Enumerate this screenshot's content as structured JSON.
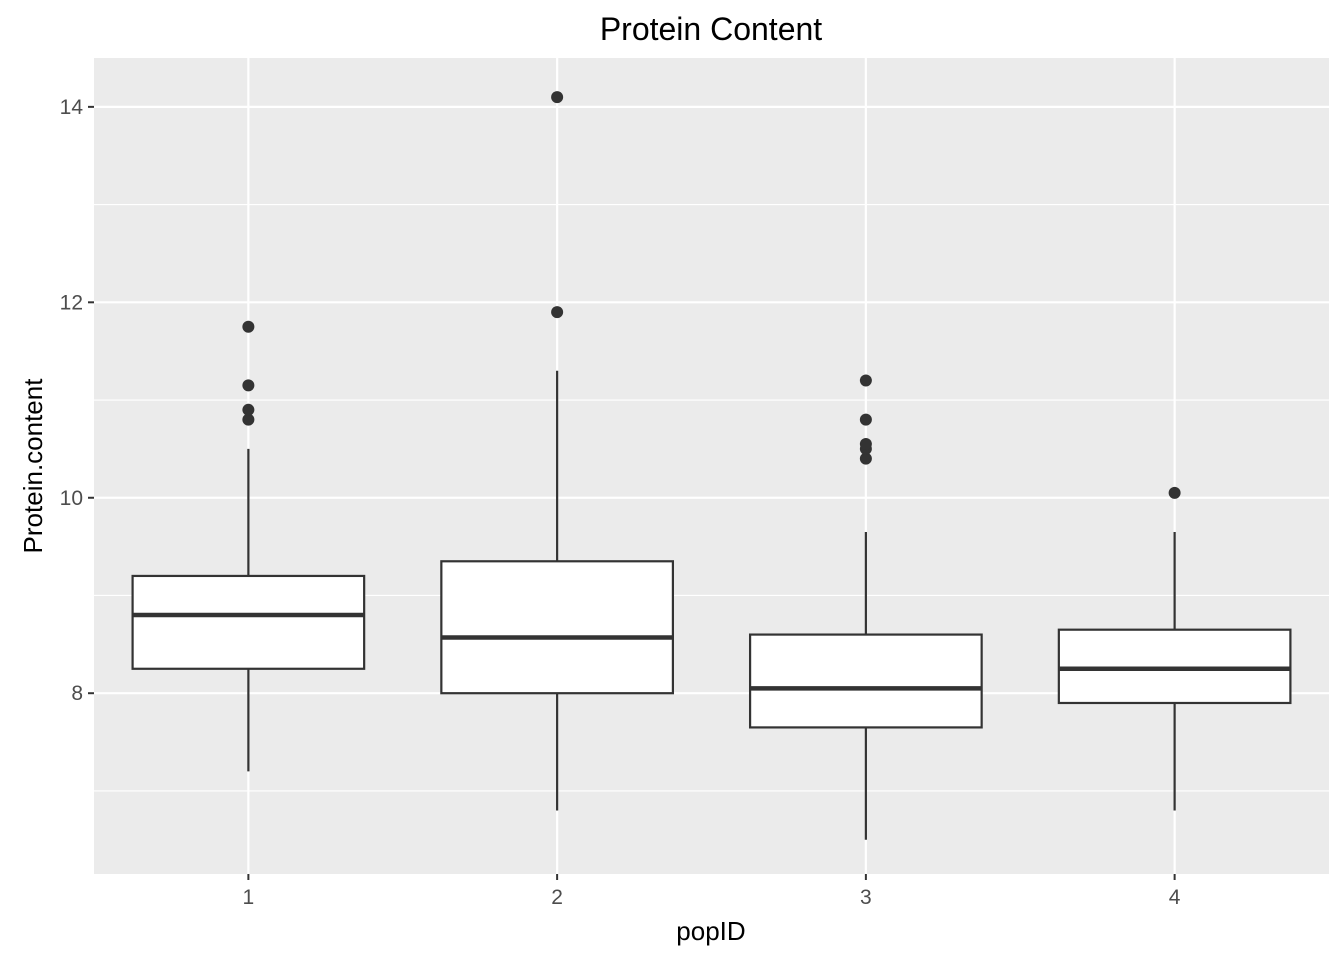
{
  "chart_data": {
    "type": "boxplot",
    "title": "Protein Content",
    "xlabel": "popID",
    "ylabel": "Protein.content",
    "categories": [
      "1",
      "2",
      "3",
      "4"
    ],
    "ylim": [
      6.15,
      14.5
    ],
    "y_ticks": [
      8,
      10,
      12,
      14
    ],
    "y_tick_labels": [
      "8",
      "10",
      "12",
      "14"
    ],
    "grid": true,
    "boxes": [
      {
        "category": "1",
        "whisker_low": 7.2,
        "q1": 8.25,
        "median": 8.8,
        "q3": 9.2,
        "whisker_high": 10.5,
        "outliers": [
          10.8,
          10.9,
          11.15,
          11.75
        ]
      },
      {
        "category": "2",
        "whisker_low": 6.8,
        "q1": 8.0,
        "median": 8.57,
        "q3": 9.35,
        "whisker_high": 11.3,
        "outliers": [
          11.9,
          14.1
        ]
      },
      {
        "category": "3",
        "whisker_low": 6.5,
        "q1": 7.65,
        "median": 8.05,
        "q3": 8.6,
        "whisker_high": 9.65,
        "outliers": [
          10.4,
          10.5,
          10.55,
          10.8,
          11.2
        ]
      },
      {
        "category": "4",
        "whisker_low": 6.8,
        "q1": 7.9,
        "median": 8.25,
        "q3": 8.65,
        "whisker_high": 9.65,
        "outliers": [
          10.05
        ]
      }
    ],
    "colors": {
      "panel": "#ebebeb",
      "grid": "#ffffff",
      "box_fill": "#ffffff",
      "box_stroke": "#333333",
      "point": "#333333"
    }
  }
}
